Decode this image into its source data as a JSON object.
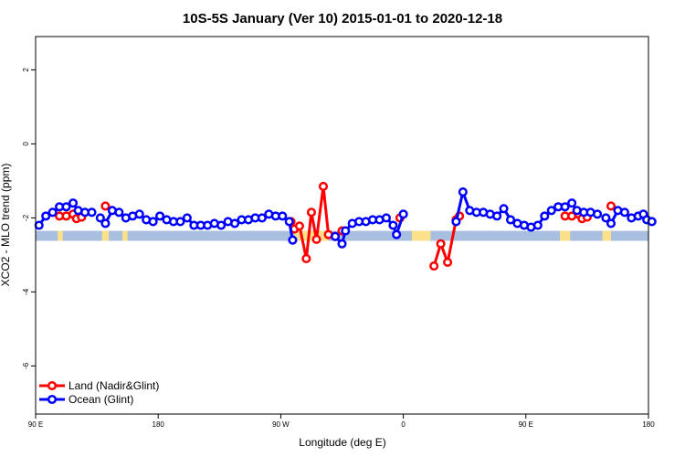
{
  "chart_data": {
    "type": "line",
    "title": "10S-5S January (Ver 10)   2015-01-01 to 2020-12-18",
    "xlabel": "Longitude (deg E)",
    "ylabel": "XCO2 - MLO trend (ppm)",
    "xlim": [
      90,
      450
    ],
    "ylim": [
      -7.3,
      2.9
    ],
    "x_ticks": [
      {
        "value": 90,
        "label": "90 E"
      },
      {
        "value": 162,
        "label": "180"
      },
      {
        "value": 234,
        "label": "90 W"
      },
      {
        "value": 306,
        "label": "0"
      },
      {
        "value": 378,
        "label": "90 E"
      },
      {
        "value": 450,
        "label": "180"
      }
    ],
    "y_ticks": [
      {
        "value": 2,
        "label": "2"
      },
      {
        "value": 0,
        "label": "0"
      },
      {
        "value": -2,
        "label": "-2"
      },
      {
        "value": -4,
        "label": "-4"
      },
      {
        "value": -6,
        "label": "-6"
      }
    ],
    "band": {
      "y_top": -2.35,
      "y_bottom": -2.62,
      "color": "#a8bfdf",
      "land_color": "#fde08a"
    },
    "land_segments": [
      [
        103,
        106
      ],
      [
        129,
        133
      ],
      [
        141,
        144
      ],
      [
        242,
        262
      ],
      [
        311,
        322
      ],
      [
        398,
        404
      ],
      [
        423,
        428
      ]
    ],
    "series": [
      {
        "name": "Land (Nadir&Glint)",
        "color": "#ff0000",
        "segments": [
          [
            [
              104,
              -1.95
            ],
            [
              108,
              -1.95
            ],
            [
              112,
              -1.9
            ],
            [
              114,
              -2.02
            ],
            [
              117,
              -1.98
            ]
          ],
          [
            [
              131,
              -1.68
            ]
          ],
          [
            [
              240,
              -2.1
            ],
            [
              242,
              -2.3
            ],
            [
              245,
              -2.22
            ],
            [
              249,
              -3.1
            ],
            [
              252,
              -1.85
            ],
            [
              255,
              -2.58
            ],
            [
              259,
              -1.15
            ],
            [
              262,
              -2.45
            ],
            [
              266,
              -2.5
            ],
            [
              270,
              -2.35
            ]
          ],
          [
            [
              304,
              -2.0
            ]
          ],
          [
            [
              324,
              -3.3
            ],
            [
              328,
              -2.7
            ],
            [
              332,
              -3.2
            ],
            [
              337,
              -2.05
            ],
            [
              339,
              -1.95
            ]
          ],
          [
            [
              401,
              -1.95
            ],
            [
              405,
              -1.95
            ],
            [
              409,
              -1.9
            ],
            [
              411,
              -2.02
            ],
            [
              414,
              -1.98
            ]
          ],
          [
            [
              428,
              -1.68
            ]
          ]
        ]
      },
      {
        "name": "Ocean (Glint)",
        "color": "#0000ff",
        "segments": [
          [
            [
              92,
              -2.2
            ],
            [
              96,
              -1.95
            ],
            [
              100,
              -1.85
            ],
            [
              104,
              -1.7
            ],
            [
              108,
              -1.7
            ],
            [
              112,
              -1.6
            ],
            [
              115,
              -1.8
            ],
            [
              119,
              -1.85
            ],
            [
              123,
              -1.85
            ]
          ],
          [
            [
              128,
              -2.0
            ],
            [
              131,
              -2.15
            ],
            [
              135,
              -1.8
            ],
            [
              139,
              -1.85
            ],
            [
              143,
              -2.0
            ],
            [
              147,
              -1.95
            ],
            [
              151,
              -1.9
            ],
            [
              155,
              -2.05
            ],
            [
              159,
              -2.1
            ],
            [
              163,
              -1.95
            ],
            [
              167,
              -2.05
            ],
            [
              171,
              -2.1
            ],
            [
              175,
              -2.1
            ],
            [
              179,
              -2.0
            ],
            [
              183,
              -2.2
            ],
            [
              187,
              -2.2
            ],
            [
              191,
              -2.2
            ],
            [
              195,
              -2.15
            ],
            [
              199,
              -2.2
            ],
            [
              203,
              -2.1
            ],
            [
              207,
              -2.15
            ],
            [
              211,
              -2.05
            ],
            [
              215,
              -2.05
            ],
            [
              219,
              -2.0
            ],
            [
              223,
              -2.0
            ],
            [
              227,
              -1.9
            ],
            [
              231,
              -1.95
            ],
            [
              235,
              -1.95
            ],
            [
              239,
              -2.1
            ],
            [
              241,
              -2.6
            ]
          ],
          [
            [
              266,
              -2.5
            ],
            [
              270,
              -2.7
            ],
            [
              272,
              -2.35
            ],
            [
              276,
              -2.15
            ],
            [
              280,
              -2.1
            ],
            [
              284,
              -2.1
            ],
            [
              288,
              -2.05
            ],
            [
              292,
              -2.05
            ],
            [
              296,
              -2.0
            ],
            [
              300,
              -2.2
            ],
            [
              302,
              -2.45
            ],
            [
              306,
              -1.9
            ]
          ],
          [
            [
              337,
              -2.1
            ],
            [
              341,
              -1.3
            ],
            [
              345,
              -1.8
            ],
            [
              349,
              -1.85
            ],
            [
              353,
              -1.85
            ],
            [
              357,
              -1.9
            ],
            [
              361,
              -1.95
            ],
            [
              365,
              -1.75
            ],
            [
              369,
              -2.05
            ],
            [
              373,
              -2.15
            ],
            [
              377,
              -2.2
            ],
            [
              381,
              -2.25
            ],
            [
              385,
              -2.2
            ],
            [
              389,
              -1.95
            ],
            [
              393,
              -1.8
            ],
            [
              397,
              -1.7
            ],
            [
              401,
              -1.7
            ],
            [
              405,
              -1.6
            ],
            [
              408,
              -1.8
            ],
            [
              412,
              -1.85
            ],
            [
              416,
              -1.85
            ],
            [
              420,
              -1.9
            ]
          ],
          [
            [
              425,
              -2.0
            ],
            [
              428,
              -2.15
            ],
            [
              432,
              -1.8
            ],
            [
              436,
              -1.85
            ],
            [
              440,
              -2.0
            ],
            [
              444,
              -1.95
            ],
            [
              447,
              -1.9
            ],
            [
              449,
              -2.05
            ],
            [
              452,
              -2.1
            ]
          ]
        ]
      }
    ],
    "legend": {
      "position": "bottom-left"
    }
  }
}
